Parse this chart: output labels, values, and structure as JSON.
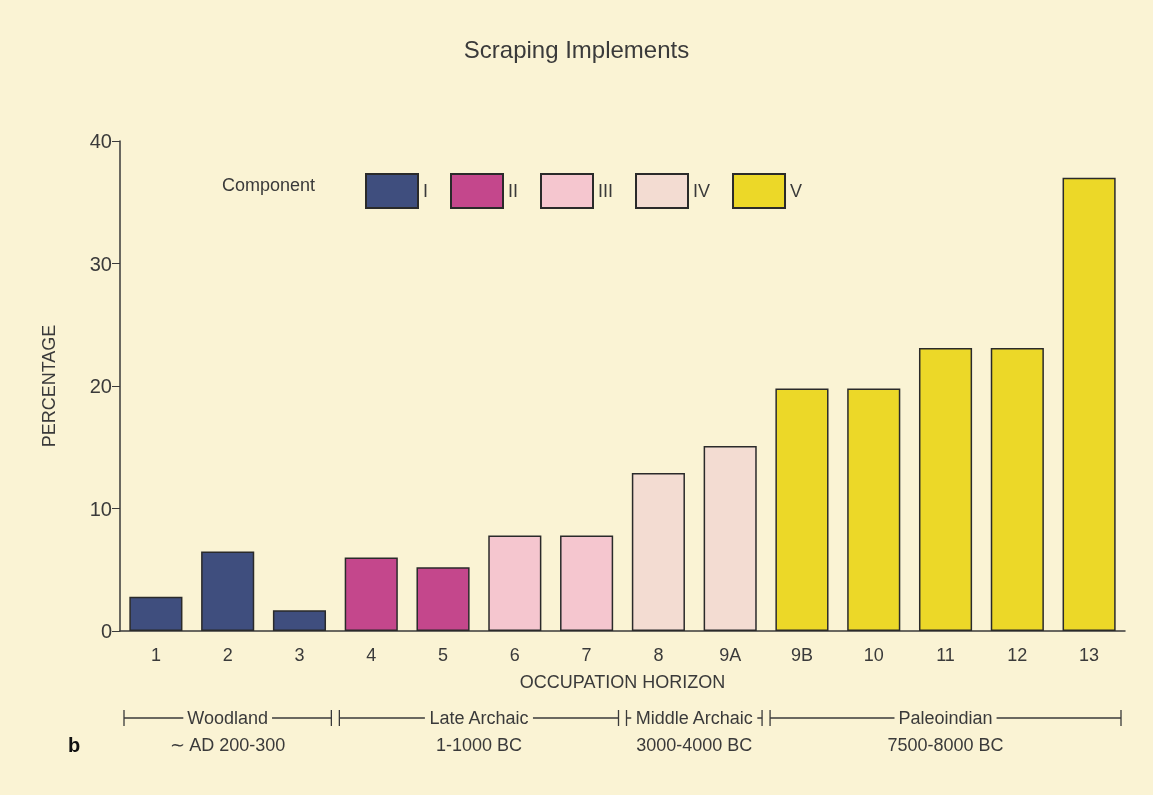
{
  "chart_data": {
    "type": "bar",
    "title": "Scraping Implements",
    "xlabel": "OCCUPATION HORIZON",
    "ylabel": "PERCENTAGE",
    "legend_title": "Component",
    "categories": [
      "1",
      "2",
      "3",
      "4",
      "5",
      "6",
      "7",
      "8",
      "9A",
      "9B",
      "10",
      "11",
      "12",
      "13"
    ],
    "stacked": true,
    "series": [
      {
        "name": "I",
        "color": "#3f4e7e",
        "values": [
          2.8,
          6.5,
          1.7,
          null,
          null,
          null,
          null,
          null,
          null,
          null,
          null,
          null,
          null,
          null
        ]
      },
      {
        "name": "II",
        "color": "#c4478c",
        "values": [
          null,
          null,
          null,
          6.0,
          5.2,
          null,
          null,
          null,
          null,
          null,
          null,
          null,
          null,
          null
        ]
      },
      {
        "name": "III",
        "color": "#f5c6cf",
        "values": [
          null,
          null,
          null,
          null,
          null,
          7.8,
          7.8,
          null,
          null,
          null,
          null,
          null,
          null,
          null
        ]
      },
      {
        "name": "IV",
        "color": "#f3dcd2",
        "values": [
          null,
          null,
          null,
          null,
          null,
          null,
          null,
          12.9,
          15.1,
          null,
          null,
          null,
          null,
          null
        ]
      },
      {
        "name": "V",
        "color": "#ecd828",
        "values": [
          null,
          null,
          null,
          null,
          null,
          null,
          null,
          null,
          null,
          19.8,
          19.8,
          23.1,
          23.1,
          37.0
        ]
      }
    ],
    "ylim": [
      0,
      40
    ],
    "yticks": [
      0,
      10,
      20,
      30,
      40
    ],
    "grid": false,
    "legend": "top",
    "annotations": [
      "Woodland",
      "∼ AD 200-300",
      "Late Archaic",
      "1-1000 BC",
      "Middle Archaic",
      "3000-4000 BC",
      "Paleoindian",
      "7500-8000 BC",
      "b"
    ]
  }
}
